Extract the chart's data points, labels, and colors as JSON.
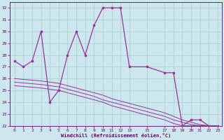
{
  "xlabel": "Windchill (Refroidissement éolien,°C)",
  "bg_color": "#cce8ee",
  "grid_color": "#aacccc",
  "line_color": "#993399",
  "xlim": [
    -0.5,
    23.5
  ],
  "ylim": [
    22,
    32.5
  ],
  "yticks": [
    22,
    23,
    24,
    25,
    26,
    27,
    28,
    29,
    30,
    31,
    32
  ],
  "xtick_positions": [
    0,
    1,
    2,
    3,
    4,
    5,
    6,
    7,
    8,
    9,
    10,
    11,
    12,
    13,
    15,
    17,
    18,
    19,
    20,
    21,
    22,
    23
  ],
  "xtick_labels": [
    "0",
    "1",
    "2",
    "3",
    "4",
    "5",
    "6",
    "7",
    "8",
    "9",
    "10",
    "11",
    "12",
    "13",
    "15",
    "17",
    "18",
    "19",
    "20",
    "21",
    "22",
    "23"
  ],
  "main_x": [
    0,
    1,
    2,
    3,
    4,
    5,
    6,
    7,
    8,
    9,
    10,
    11,
    12,
    13,
    15,
    17,
    18,
    19,
    20,
    21,
    22,
    23
  ],
  "main_y": [
    27.5,
    27,
    27.5,
    30,
    24,
    25,
    28,
    30,
    28,
    30.5,
    32,
    32,
    32,
    27,
    27,
    26.5,
    26.5,
    22,
    22.5,
    22.5,
    22,
    22
  ],
  "trend1_x": [
    0,
    3,
    5,
    6,
    7,
    8,
    9,
    10,
    11,
    12,
    13,
    15,
    17,
    18,
    19,
    20,
    21,
    22,
    23
  ],
  "trend1_y": [
    26.0,
    25.8,
    25.6,
    25.4,
    25.2,
    25.0,
    24.8,
    24.6,
    24.3,
    24.1,
    23.9,
    23.5,
    23.1,
    22.8,
    22.5,
    22.3,
    22.1,
    22.0,
    22.0
  ],
  "trend2_x": [
    0,
    3,
    5,
    6,
    7,
    8,
    9,
    10,
    11,
    12,
    13,
    15,
    17,
    18,
    19,
    20,
    21,
    22,
    23
  ],
  "trend2_y": [
    25.7,
    25.5,
    25.3,
    25.1,
    24.9,
    24.7,
    24.5,
    24.2,
    24.0,
    23.8,
    23.6,
    23.2,
    22.8,
    22.5,
    22.3,
    22.1,
    22.0,
    22.0,
    22.0
  ],
  "trend3_x": [
    0,
    3,
    5,
    6,
    7,
    8,
    9,
    10,
    11,
    12,
    13,
    15,
    17,
    18,
    19,
    20,
    21,
    22,
    23
  ],
  "trend3_y": [
    25.4,
    25.2,
    25.0,
    24.8,
    24.6,
    24.4,
    24.2,
    24.0,
    23.7,
    23.5,
    23.3,
    22.9,
    22.5,
    22.2,
    22.0,
    22.0,
    22.0,
    22.0,
    22.0
  ]
}
